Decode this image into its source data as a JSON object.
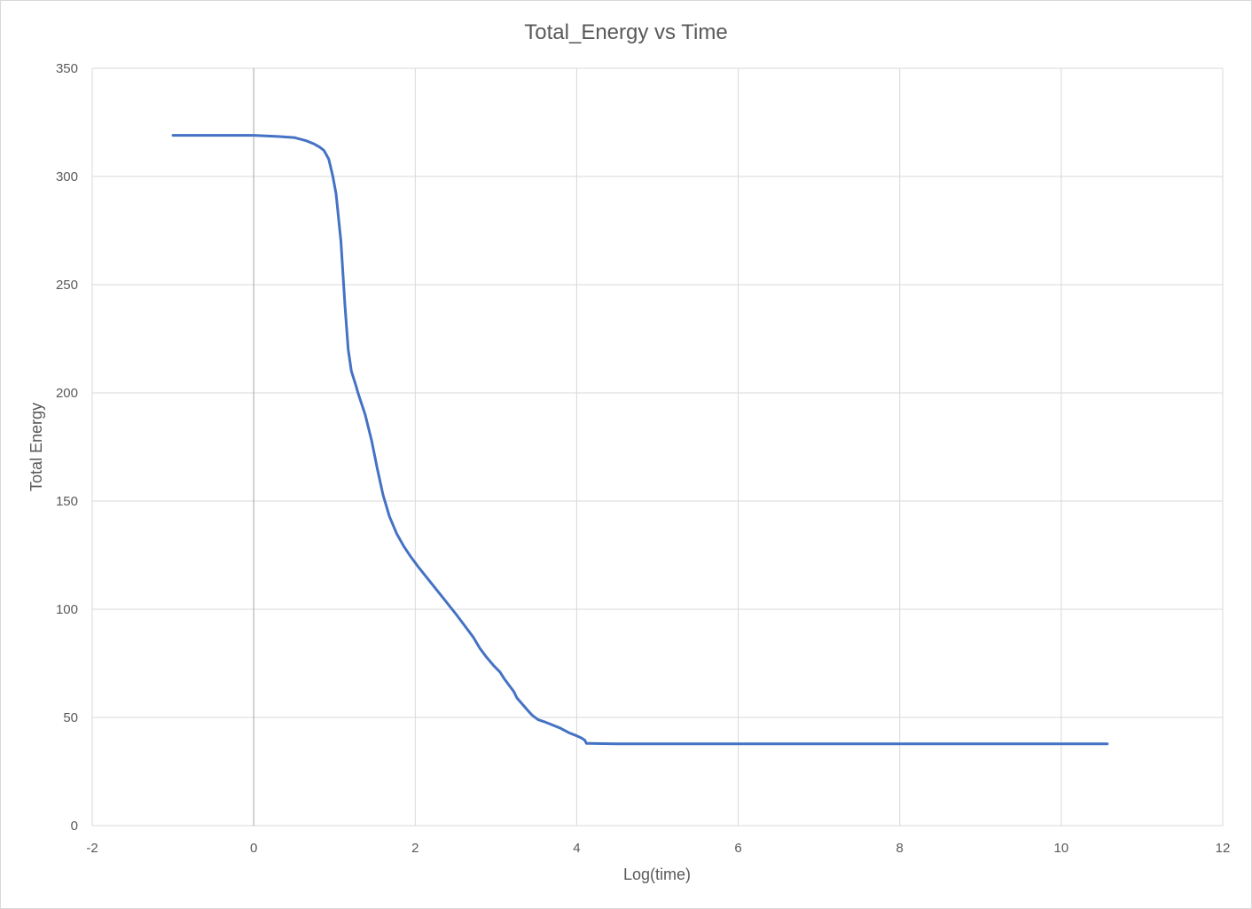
{
  "chart_data": {
    "type": "line",
    "title": "Total_Energy vs Time",
    "xlabel": "Log(time)",
    "ylabel": "Total Energy",
    "xlim": [
      -2,
      12
    ],
    "ylim": [
      0,
      350
    ],
    "x_ticks": [
      -2,
      0,
      2,
      4,
      6,
      8,
      10,
      12
    ],
    "y_ticks": [
      0,
      50,
      100,
      150,
      200,
      250,
      300,
      350
    ],
    "grid": true,
    "legend": "none",
    "series": [
      {
        "color": "#4472c4",
        "x": [
          -1.0,
          -0.5,
          0.0,
          0.3,
          0.5,
          0.65,
          0.75,
          0.82,
          0.87,
          0.93,
          0.98,
          1.02,
          1.08,
          1.13,
          1.17,
          1.21,
          1.26,
          1.3,
          1.38,
          1.46,
          1.53,
          1.6,
          1.68,
          1.77,
          1.86,
          1.95,
          2.05,
          2.2,
          2.35,
          2.5,
          2.62,
          2.72,
          2.8,
          2.88,
          2.97,
          3.05,
          3.1,
          3.16,
          3.22,
          3.26,
          3.33,
          3.4,
          3.45,
          3.52,
          3.6,
          3.7,
          3.8,
          3.9,
          4.0,
          4.06,
          4.1,
          4.12,
          4.15,
          4.5,
          6.0,
          8.0,
          10.0,
          10.57
        ],
        "y": [
          319,
          319,
          319,
          318.5,
          318,
          316.5,
          315,
          313.5,
          312,
          308,
          300,
          292,
          270,
          240,
          220,
          210,
          204,
          199,
          190,
          178,
          165,
          153,
          143,
          135,
          129,
          124,
          119,
          112,
          105,
          98,
          92,
          87,
          82,
          78,
          74,
          71,
          68,
          65,
          62,
          59,
          56,
          53,
          51,
          49,
          48,
          46.5,
          45,
          43,
          41.5,
          40.5,
          39.5,
          38,
          38,
          37.8,
          37.8,
          37.8,
          37.8,
          37.8
        ]
      }
    ]
  }
}
